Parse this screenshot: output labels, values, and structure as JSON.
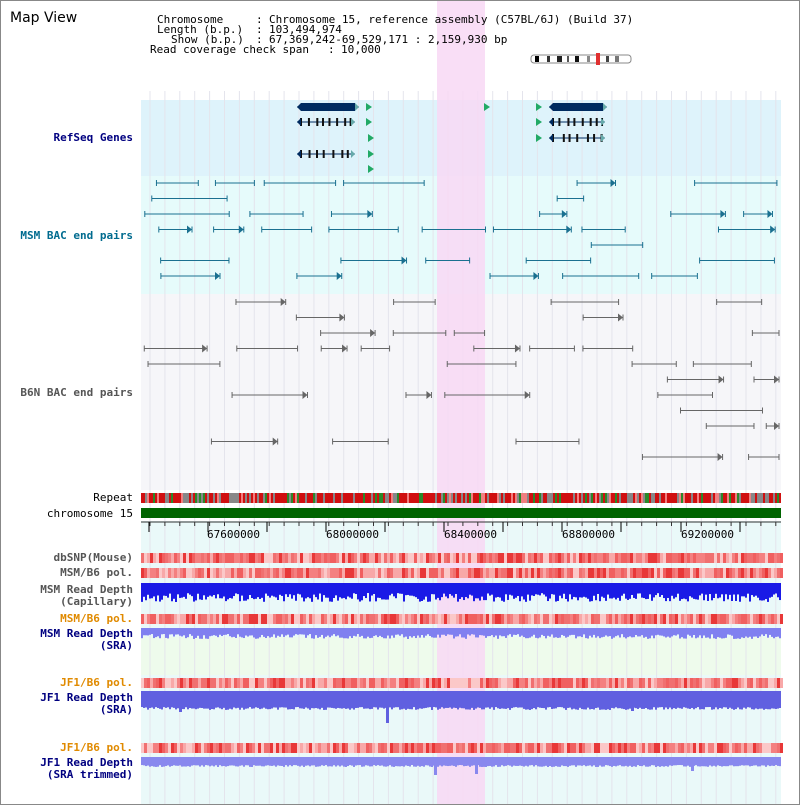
{
  "title": "Map View",
  "header": {
    "chromosome_label": "Chromosome",
    "chromosome_value": "Chromosome 15, reference assembly (C57BL/6J) (Build 37)",
    "length_label": "Length (b.p.)",
    "length_value": "103,494,974",
    "show_label": "Show (b.p.)",
    "show_value": "67,369,242-69,529,171 : 2,159,930 bp",
    "coverage_label": "Read coverage check span",
    "coverage_value": "10,000"
  },
  "tracks": {
    "refseq": "RefSeq Genes",
    "msm_bac": "MSM BAC end pairs",
    "b6n_bac": "B6N BAC end pairs",
    "repeat": "Repeat",
    "chromosome": "chromosome 15",
    "dbsnp": "dbSNP(Mouse)",
    "msm_pol1": "MSM/B6 pol.",
    "msm_depth_cap_1": "MSM Read Depth",
    "msm_depth_cap_2": "(Capillary)",
    "msm_pol2": "MSM/B6 pol.",
    "msm_depth_sra_1": "MSM Read Depth",
    "msm_depth_sra_2": "(SRA)",
    "jf1_pol1": "JF1/B6 pol.",
    "jf1_depth_sra_1": "JF1 Read Depth",
    "jf1_depth_sra_2": "(SRA)",
    "jf1_pol2": "JF1/B6 pol.",
    "jf1_depth_trim_1": "JF1 Read Depth",
    "jf1_depth_trim_2": "(SRA trimmed)"
  },
  "ticks": [
    "67600000",
    "68000000",
    "68400000",
    "68800000",
    "69200000"
  ],
  "colors": {
    "refseq_bg": "#def3fb",
    "msm_bg": "#e6fbfb",
    "highlight": "#f8d8f4",
    "gene": "#002b60",
    "chromosome_bar": "#006400",
    "depth_blue": "#1a1ae6",
    "depth_light": "#8080f0",
    "snp_red": "#f06060"
  }
}
